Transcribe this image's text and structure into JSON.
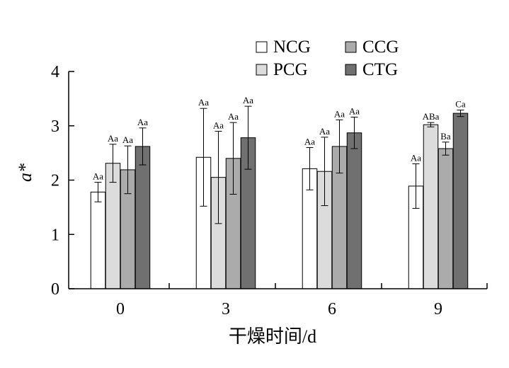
{
  "chart_data": {
    "type": "bar",
    "xlabel": "干燥时间/d",
    "ylabel": "a*",
    "categories": [
      "0",
      "3",
      "6",
      "9"
    ],
    "ylim": [
      0,
      4
    ],
    "yticks": [
      "0",
      "1",
      "2",
      "3",
      "4"
    ],
    "grid": false,
    "legend_position": "top-right",
    "series": [
      {
        "name": "NCG",
        "color": "#ffffff",
        "values": [
          1.78,
          2.42,
          2.21,
          1.89
        ],
        "errors": [
          0.18,
          0.9,
          0.39,
          0.41
        ],
        "labels": [
          "Aa",
          "Aa",
          "Aa",
          "Aa"
        ]
      },
      {
        "name": "PCG",
        "color": "#dcdcdc",
        "values": [
          2.31,
          2.05,
          2.16,
          3.02
        ],
        "errors": [
          0.35,
          0.85,
          0.63,
          0.04
        ],
        "labels": [
          "Aa",
          "Aa",
          "Aa",
          "ABa"
        ]
      },
      {
        "name": "CCG",
        "color": "#ababab",
        "values": [
          2.19,
          2.4,
          2.62,
          2.58
        ],
        "errors": [
          0.44,
          0.66,
          0.49,
          0.12
        ],
        "labels": [
          "Aa",
          "Aa",
          "Aa",
          "Ba"
        ]
      },
      {
        "name": "CTG",
        "color": "#707070",
        "values": [
          2.62,
          2.78,
          2.87,
          3.23
        ],
        "errors": [
          0.34,
          0.58,
          0.29,
          0.06
        ],
        "labels": [
          "Aa",
          "Aa",
          "Aa",
          "Ca"
        ]
      }
    ]
  }
}
